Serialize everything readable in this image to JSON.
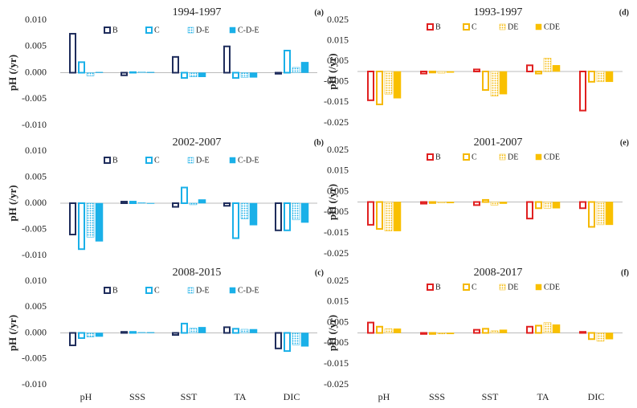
{
  "chart_data": [
    {
      "type": "bar",
      "title": "1994-1997",
      "label": "(a)",
      "ylabel": "pH (/yr)",
      "grid": false,
      "categories": [
        null,
        null,
        null,
        null,
        null
      ],
      "ylim": [
        -0.01,
        0.01
      ],
      "yticks": [
        {
          "value": 0.01,
          "label": "0.010"
        },
        0.005,
        {
          "value": 0,
          "label": "0.000"
        },
        -0.005,
        {
          "value": -0.01,
          "label": "-0.010"
        }
      ],
      "series": [
        {
          "name": "B",
          "color": "#1f2d5c",
          "style": "outline",
          "values": [
            0.0074,
            -0.0005,
            0.003,
            0.005,
            -0.0002
          ]
        },
        {
          "name": "C",
          "color": "#1ab0e8",
          "style": "outline",
          "values": [
            0.002,
            0.0001,
            -0.001,
            -0.001,
            0.0042
          ]
        },
        {
          "name": "D-E",
          "color": "#1ab0e8",
          "style": "dots",
          "values": [
            -0.0006,
            0.0002,
            -0.0008,
            -0.0009,
            0.001
          ]
        },
        {
          "name": "C-D-E",
          "color": "#1ab0e8",
          "style": "solid",
          "values": [
            0.0001,
            0.0001,
            -0.0008,
            -0.0009,
            0.002
          ]
        }
      ]
    },
    {
      "type": "bar",
      "title": "2002-2007",
      "label": "(b)",
      "ylabel": "pH (/yr)",
      "grid": false,
      "categories": [
        null,
        null,
        null,
        null,
        null
      ],
      "ylim": [
        -0.01,
        0.01
      ],
      "yticks": [
        {
          "value": 0.01,
          "label": "0.010"
        },
        0.005,
        {
          "value": 0,
          "label": "0.000"
        },
        -0.005,
        {
          "value": -0.01,
          "label": "-0.010"
        }
      ],
      "series": [
        {
          "name": "B",
          "color": "#1f2d5c",
          "style": "outline",
          "values": [
            -0.006,
            0.0003,
            -0.0007,
            -0.0005,
            -0.0052
          ]
        },
        {
          "name": "C",
          "color": "#1ab0e8",
          "style": "outline",
          "values": [
            -0.0088,
            0.0003,
            0.003,
            -0.0067,
            -0.0052
          ]
        },
        {
          "name": "D-E",
          "color": "#1ab0e8",
          "style": "dots",
          "values": [
            -0.0065,
            0.0001,
            -0.0003,
            -0.003,
            -0.0032
          ]
        },
        {
          "name": "C-D-E",
          "color": "#1ab0e8",
          "style": "solid",
          "values": [
            -0.0073,
            0.0,
            0.0007,
            -0.0042,
            -0.0037
          ]
        }
      ]
    },
    {
      "type": "bar",
      "title": "2008-2015",
      "label": "(c)",
      "ylabel": "pH (/yr)",
      "grid": false,
      "categories": [
        "pH",
        "SSS",
        "SST",
        "TA",
        "DIC"
      ],
      "ylim": [
        -0.01,
        0.01
      ],
      "yticks": [
        {
          "value": 0.01,
          "label": "0.010"
        },
        0.005,
        {
          "value": 0,
          "label": "0.000"
        },
        -0.005,
        {
          "value": -0.01,
          "label": "-0.010"
        }
      ],
      "series": [
        {
          "name": "B",
          "color": "#1f2d5c",
          "style": "outline",
          "values": [
            -0.0024,
            0.0002,
            -0.0004,
            0.0011,
            -0.003
          ]
        },
        {
          "name": "C",
          "color": "#1ab0e8",
          "style": "outline",
          "values": [
            -0.001,
            0.0002,
            0.0018,
            0.0008,
            -0.0035
          ]
        },
        {
          "name": "D-E",
          "color": "#1ab0e8",
          "style": "dots",
          "values": [
            -0.0008,
            0.0001,
            0.0009,
            0.0007,
            -0.0023
          ]
        },
        {
          "name": "C-D-E",
          "color": "#1ab0e8",
          "style": "solid",
          "values": [
            -0.0007,
            0.0001,
            0.0011,
            0.0007,
            -0.0026
          ]
        }
      ]
    },
    {
      "type": "bar",
      "title": "1993-1997",
      "label": "(d)",
      "ylabel": "pH (/yr)",
      "grid": false,
      "categories": [
        null,
        null,
        null,
        null,
        null
      ],
      "ylim": [
        -0.025,
        0.025
      ],
      "yticks": [
        0.025,
        0.015,
        0.005,
        -0.005,
        -0.015,
        -0.025
      ],
      "series": [
        {
          "name": "B",
          "color": "#e02020",
          "style": "outline",
          "values": [
            -0.014,
            -0.001,
            0.001,
            0.003,
            -0.019
          ]
        },
        {
          "name": "C",
          "color": "#f5b800",
          "style": "outline",
          "values": [
            -0.016,
            -0.0005,
            -0.009,
            -0.001,
            -0.005
          ]
        },
        {
          "name": "DE",
          "color": "#f5b800",
          "style": "dots",
          "values": [
            -0.011,
            -0.0008,
            -0.012,
            0.0065,
            -0.005
          ]
        },
        {
          "name": "CDE",
          "color": "#f9c000",
          "style": "solid",
          "values": [
            -0.013,
            -0.0005,
            -0.011,
            0.003,
            -0.005
          ]
        }
      ]
    },
    {
      "type": "bar",
      "title": "2001-2007",
      "label": "(e)",
      "ylabel": "pH (/yr)",
      "grid": false,
      "categories": [
        null,
        null,
        null,
        null,
        null
      ],
      "ylim": [
        -0.025,
        0.025
      ],
      "yticks": [
        0.025,
        0.015,
        0.005,
        -0.005,
        -0.015,
        -0.025
      ],
      "series": [
        {
          "name": "B",
          "color": "#e02020",
          "style": "outline",
          "values": [
            -0.011,
            -0.0008,
            -0.0015,
            -0.008,
            -0.003
          ]
        },
        {
          "name": "C",
          "color": "#f5b800",
          "style": "outline",
          "values": [
            -0.013,
            -0.0005,
            0.001,
            -0.003,
            -0.012
          ]
        },
        {
          "name": "DE",
          "color": "#f5b800",
          "style": "dots",
          "values": [
            -0.014,
            -0.0005,
            -0.0015,
            -0.003,
            -0.011
          ]
        },
        {
          "name": "CDE",
          "color": "#f9c000",
          "style": "solid",
          "values": [
            -0.014,
            -0.0005,
            -0.0008,
            -0.003,
            -0.011
          ]
        }
      ]
    },
    {
      "type": "bar",
      "title": "2008-2017",
      "label": "(f)",
      "ylabel": "pH (/yr)",
      "grid": false,
      "categories": [
        "pH",
        "SSS",
        "SST",
        "TA",
        "DIC"
      ],
      "ylim": [
        -0.025,
        0.025
      ],
      "yticks": [
        0.025,
        0.015,
        0.005,
        -0.005,
        -0.015,
        -0.025
      ],
      "series": [
        {
          "name": "B",
          "color": "#e02020",
          "style": "outline",
          "values": [
            0.005,
            -0.0005,
            0.0015,
            0.003,
            0.0005
          ]
        },
        {
          "name": "C",
          "color": "#f5b800",
          "style": "outline",
          "values": [
            0.003,
            -0.0005,
            0.002,
            0.0035,
            -0.003
          ]
        },
        {
          "name": "DE",
          "color": "#f5b800",
          "style": "dots",
          "values": [
            0.002,
            -0.0005,
            0.001,
            0.005,
            -0.004
          ]
        },
        {
          "name": "CDE",
          "color": "#f9c000",
          "style": "solid",
          "values": [
            0.002,
            -0.0005,
            0.0015,
            0.004,
            -0.003
          ]
        }
      ]
    }
  ]
}
